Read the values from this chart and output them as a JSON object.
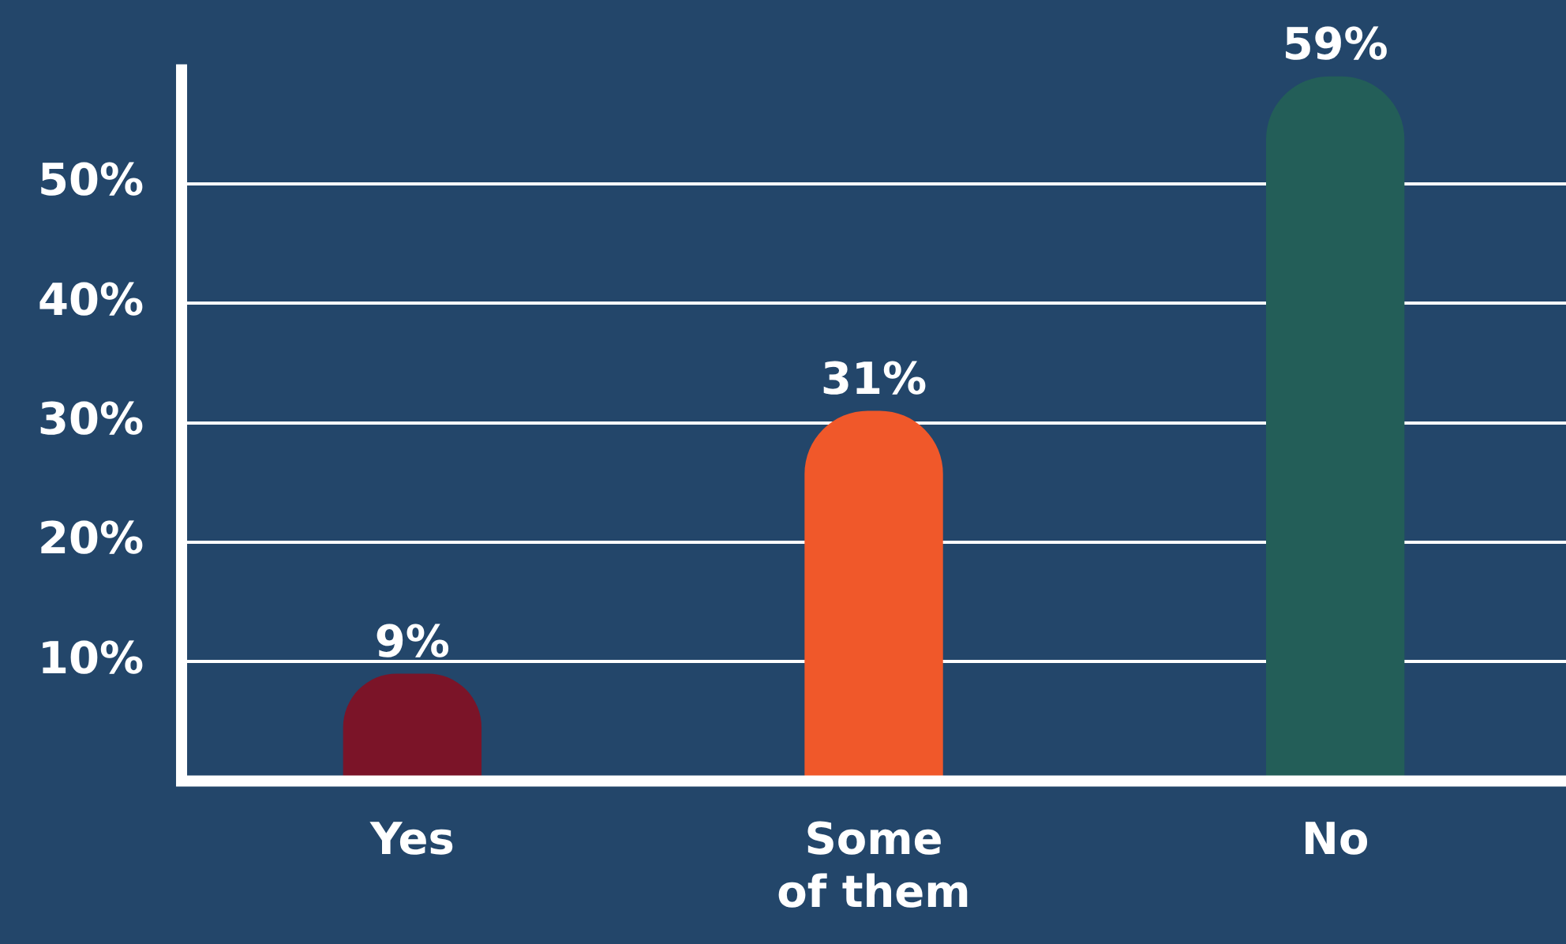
{
  "chart_data": {
    "type": "bar",
    "categories": [
      "Yes",
      "Some of them",
      "No"
    ],
    "values": [
      9,
      31,
      59
    ],
    "colors": [
      "#7b1428",
      "#f0582a",
      "#235e58"
    ],
    "ylim": [
      0,
      60
    ],
    "yticks": [
      {
        "value": 10,
        "label": "10%"
      },
      {
        "value": 20,
        "label": "20%"
      },
      {
        "value": 30,
        "label": "30%"
      },
      {
        "value": 40,
        "label": "40%"
      },
      {
        "value": 50,
        "label": "50%"
      }
    ],
    "grid": "y",
    "value_labels": [
      "9%",
      "31%",
      "59%"
    ]
  }
}
